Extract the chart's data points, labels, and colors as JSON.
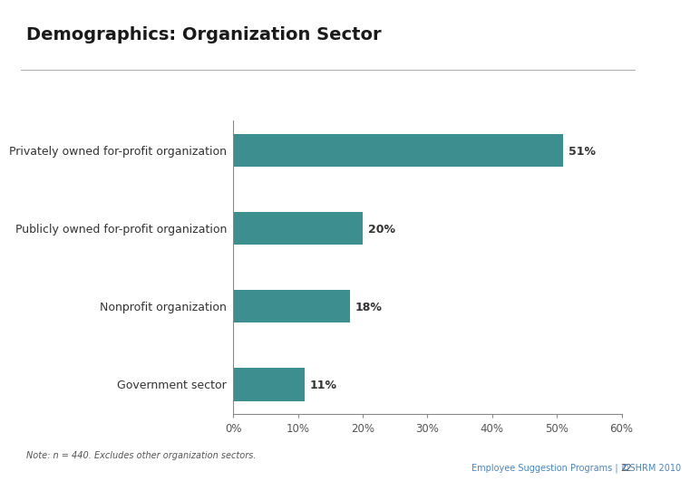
{
  "title": "Demographics: Organization Sector",
  "categories": [
    "Government sector",
    "Nonprofit organization",
    "Publicly owned for-profit organization",
    "Privately owned for-profit organization"
  ],
  "values": [
    11,
    18,
    20,
    51
  ],
  "labels": [
    "11%",
    "18%",
    "20%",
    "51%"
  ],
  "bar_color": "#3d8f8f",
  "xlim": [
    0,
    60
  ],
  "xticks": [
    0,
    10,
    20,
    30,
    40,
    50,
    60
  ],
  "xticklabels": [
    "0%",
    "10%",
    "20%",
    "30%",
    "40%",
    "50%",
    "60%"
  ],
  "title_fontsize": 14,
  "title_color": "#1a1a1a",
  "title_fontweight": "bold",
  "label_fontsize": 9,
  "category_fontsize": 9,
  "note_text": "Note: n = 440. Excludes other organization sectors.",
  "footer_text": "Employee Suggestion Programs | ©SHRM 2010",
  "footer_page": "22",
  "background_color": "#ffffff",
  "ax_background": "#ffffff",
  "separator_color": "#aaaaaa",
  "logo_bg": "#6b8cae",
  "logo_text_color": "#ffffff",
  "footer_color": "#4a86c8"
}
